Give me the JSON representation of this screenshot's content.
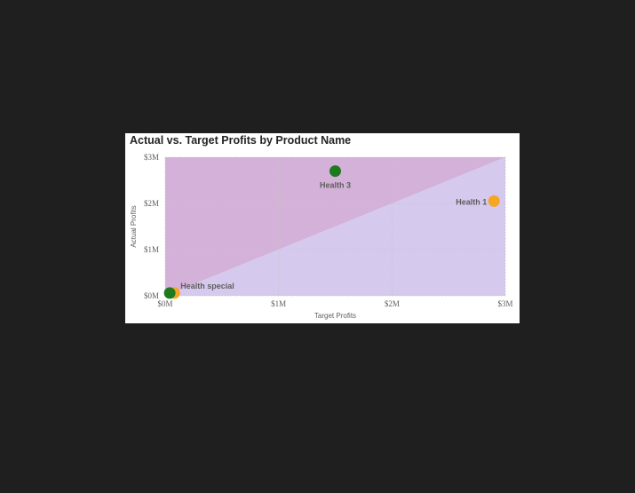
{
  "chart_data": {
    "type": "scatter",
    "title": "Actual vs. Target Profits by Product Name",
    "xlabel": "Target Profits",
    "ylabel": "Actual Profits",
    "xlim": [
      0,
      3000000
    ],
    "ylim": [
      0,
      3000000
    ],
    "x_ticks": [
      {
        "value": 0,
        "label": "$0M"
      },
      {
        "value": 1000000,
        "label": "$1M"
      },
      {
        "value": 2000000,
        "label": "$2M"
      },
      {
        "value": 3000000,
        "label": "$3M"
      }
    ],
    "y_ticks": [
      {
        "value": 0,
        "label": "$0M"
      },
      {
        "value": 1000000,
        "label": "$1M"
      },
      {
        "value": 2000000,
        "label": "$2M"
      },
      {
        "value": 3000000,
        "label": "$3M"
      }
    ],
    "grid": true,
    "reference": "y = x diagonal; area above shaded purple, area below shaded lavender",
    "points": [
      {
        "label": "Health 3",
        "x": 1500000,
        "y": 2700000,
        "color": "#1e7a1e",
        "show_label": true
      },
      {
        "label": "Health 1",
        "x": 2900000,
        "y": 2050000,
        "color": "#f5a623",
        "show_label": true
      },
      {
        "label": "Health special",
        "x": 80000,
        "y": 60000,
        "color": "#f5a623",
        "show_label": true
      },
      {
        "label": "",
        "x": 40000,
        "y": 60000,
        "color": "#1e7a1e",
        "show_label": false
      }
    ],
    "colors": {
      "above_region": "#d3b1d8",
      "below_region": "#d5c9ee",
      "label_text": "#605e5c",
      "tick_text": "#605e5c"
    }
  }
}
